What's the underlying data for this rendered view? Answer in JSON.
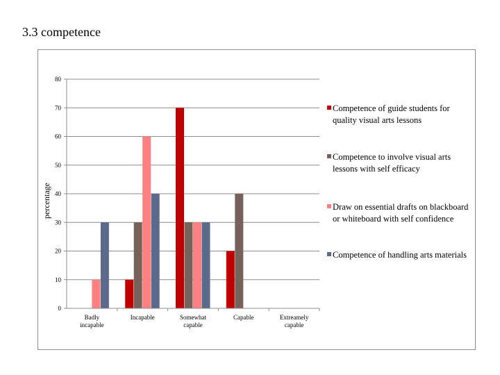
{
  "slide": {
    "title": "3.3 competence"
  },
  "colors": [
    "#c00000",
    "#76625a",
    "#ff8080",
    "#5b6a8a"
  ],
  "chart_data": {
    "type": "bar",
    "ylabel": "percentage",
    "xlabel": "",
    "ylim": [
      0,
      80
    ],
    "yticks": [
      0,
      10,
      20,
      30,
      40,
      50,
      60,
      70,
      80
    ],
    "grid": true,
    "legend": "right",
    "categories": [
      "Badly incapable",
      "Incapable",
      "Somewhat capable",
      "Capable",
      "Extreamely capable"
    ],
    "series": [
      {
        "name": "Competence of guide students for quality visual arts lessons",
        "values": [
          0,
          10,
          70,
          20,
          0
        ]
      },
      {
        "name": "Competence to involve visual arts lessons with self efficacy",
        "values": [
          0,
          30,
          30,
          40,
          0
        ]
      },
      {
        "name": "Draw on essential drafts on blackboard or whiteboard with self confidence",
        "values": [
          10,
          60,
          30,
          0,
          0
        ]
      },
      {
        "name": "Competence of handling arts materials",
        "values": [
          30,
          40,
          30,
          0,
          0
        ]
      }
    ]
  }
}
